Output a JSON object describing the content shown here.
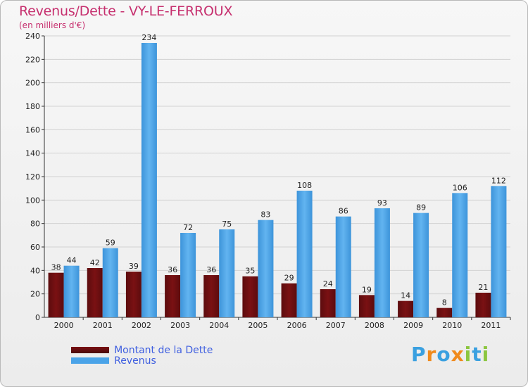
{
  "colors": {
    "dette": "#7a1113",
    "revenus": "#4aa3e8",
    "title": "#c62f6e",
    "legend_text": "#3f5fe0"
  },
  "chart_data": {
    "type": "bar",
    "title": "Revenus/Dette - VY-LE-FERROUX",
    "subtitle": "(en milliers d'€)",
    "categories": [
      "2000",
      "2001",
      "2002",
      "2003",
      "2004",
      "2005",
      "2006",
      "2007",
      "2008",
      "2009",
      "2010",
      "2011"
    ],
    "ylim": [
      0,
      240
    ],
    "yticks": [
      0,
      20,
      40,
      60,
      80,
      100,
      120,
      140,
      160,
      180,
      200,
      220,
      240
    ],
    "grid": true,
    "legend_position": "bottom-left",
    "series": [
      {
        "name": "Montant de la Dette",
        "values": [
          38,
          42,
          39,
          36,
          36,
          35,
          29,
          24,
          19,
          14,
          8,
          21
        ]
      },
      {
        "name": "Revenus",
        "values": [
          44,
          59,
          234,
          72,
          75,
          83,
          108,
          86,
          93,
          89,
          106,
          112
        ]
      }
    ]
  },
  "logo": {
    "letters": [
      "P",
      "r",
      "o",
      "x",
      "i",
      "t",
      "i"
    ]
  }
}
